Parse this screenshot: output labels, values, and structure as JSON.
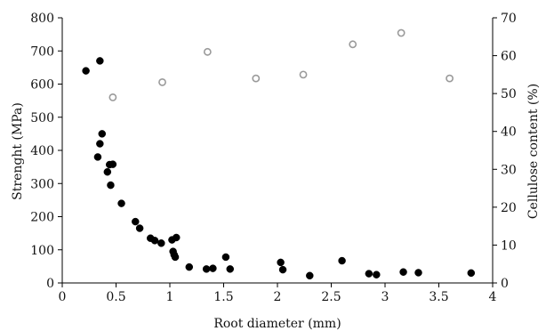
{
  "chart_data": {
    "type": "scatter",
    "title": "",
    "xlabel": "Root diameter (mm)",
    "ylabel": "Strenght (MPa)",
    "y2label": "Cellulose content (%)",
    "xlim": [
      0,
      4
    ],
    "ylim": [
      0,
      800
    ],
    "y2lim": [
      0,
      70
    ],
    "x_ticks": [
      "0",
      "0.5",
      "1",
      "1.5",
      "2",
      "2.5",
      "3",
      "3.5",
      "4"
    ],
    "y_ticks": [
      "0",
      "100",
      "200",
      "300",
      "400",
      "500",
      "600",
      "700",
      "800"
    ],
    "y2_ticks": [
      "0",
      "10",
      "20",
      "30",
      "40",
      "50",
      "60",
      "70"
    ],
    "grid": false,
    "legend": "none",
    "colors": {
      "strength": "#000000",
      "cellulose": "#9a9a9a"
    },
    "series": [
      {
        "axis": "left",
        "marker": "filled-circle",
        "points": [
          {
            "x": 0.22,
            "y": 640
          },
          {
            "x": 0.35,
            "y": 670
          },
          {
            "x": 0.33,
            "y": 380
          },
          {
            "x": 0.35,
            "y": 420
          },
          {
            "x": 0.37,
            "y": 450
          },
          {
            "x": 0.42,
            "y": 335
          },
          {
            "x": 0.44,
            "y": 357
          },
          {
            "x": 0.47,
            "y": 358
          },
          {
            "x": 0.45,
            "y": 295
          },
          {
            "x": 0.55,
            "y": 240
          },
          {
            "x": 0.68,
            "y": 185
          },
          {
            "x": 0.72,
            "y": 165
          },
          {
            "x": 0.82,
            "y": 135
          },
          {
            "x": 0.86,
            "y": 128
          },
          {
            "x": 0.92,
            "y": 120
          },
          {
            "x": 1.02,
            "y": 130
          },
          {
            "x": 1.06,
            "y": 137
          },
          {
            "x": 1.03,
            "y": 95
          },
          {
            "x": 1.04,
            "y": 85
          },
          {
            "x": 1.05,
            "y": 78
          },
          {
            "x": 1.18,
            "y": 48
          },
          {
            "x": 1.34,
            "y": 42
          },
          {
            "x": 1.4,
            "y": 44
          },
          {
            "x": 1.52,
            "y": 78
          },
          {
            "x": 1.56,
            "y": 42
          },
          {
            "x": 2.03,
            "y": 62
          },
          {
            "x": 2.05,
            "y": 40
          },
          {
            "x": 2.3,
            "y": 22
          },
          {
            "x": 2.6,
            "y": 67
          },
          {
            "x": 2.85,
            "y": 28
          },
          {
            "x": 2.92,
            "y": 25
          },
          {
            "x": 3.17,
            "y": 33
          },
          {
            "x": 3.31,
            "y": 31
          },
          {
            "x": 3.8,
            "y": 30
          }
        ]
      },
      {
        "axis": "right",
        "marker": "hollow-circle",
        "points": [
          {
            "x": 0.47,
            "y": 49
          },
          {
            "x": 0.93,
            "y": 53
          },
          {
            "x": 1.35,
            "y": 61
          },
          {
            "x": 1.8,
            "y": 54
          },
          {
            "x": 2.24,
            "y": 55
          },
          {
            "x": 2.7,
            "y": 63
          },
          {
            "x": 3.15,
            "y": 66
          },
          {
            "x": 3.6,
            "y": 54
          }
        ]
      }
    ]
  }
}
